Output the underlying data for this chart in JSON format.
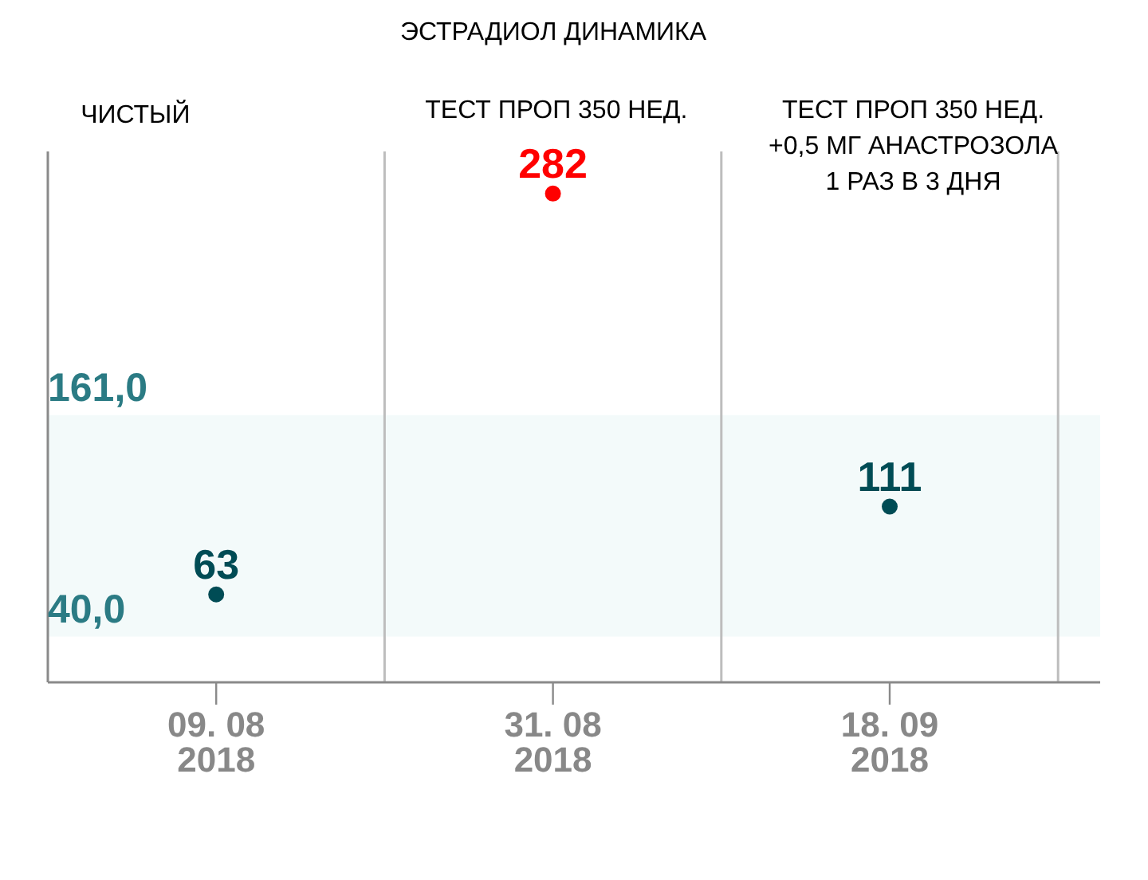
{
  "chart_data": {
    "type": "scatter",
    "title": "ЭСТРАДИОЛ ДИНАМИКА",
    "categories": [
      "09. 08\n2018",
      "31. 08\n2018",
      "18. 09\n2018"
    ],
    "values": [
      63,
      282,
      111
    ],
    "colors": [
      "#004c55",
      "#ff0000",
      "#004c55"
    ],
    "marker": "circle",
    "data_labels": true,
    "ylim": [
      15,
      305
    ],
    "grid": "x",
    "bands": [
      {
        "axis": "y",
        "from": 40,
        "to": 161,
        "color": "#f3fafa"
      }
    ],
    "annotations": [
      "ЧИСТЫЙ",
      "ТЕСТ ПРОП 350 НЕД.",
      "ТЕСТ ПРОП 350 НЕД.\n+0,5 МГ АНАСТРОЗОЛА\n1 РАЗ В 3 ДНЯ",
      {
        "text": "161,0",
        "y": 161
      },
      {
        "text": "40,0",
        "y": 40
      }
    ]
  }
}
